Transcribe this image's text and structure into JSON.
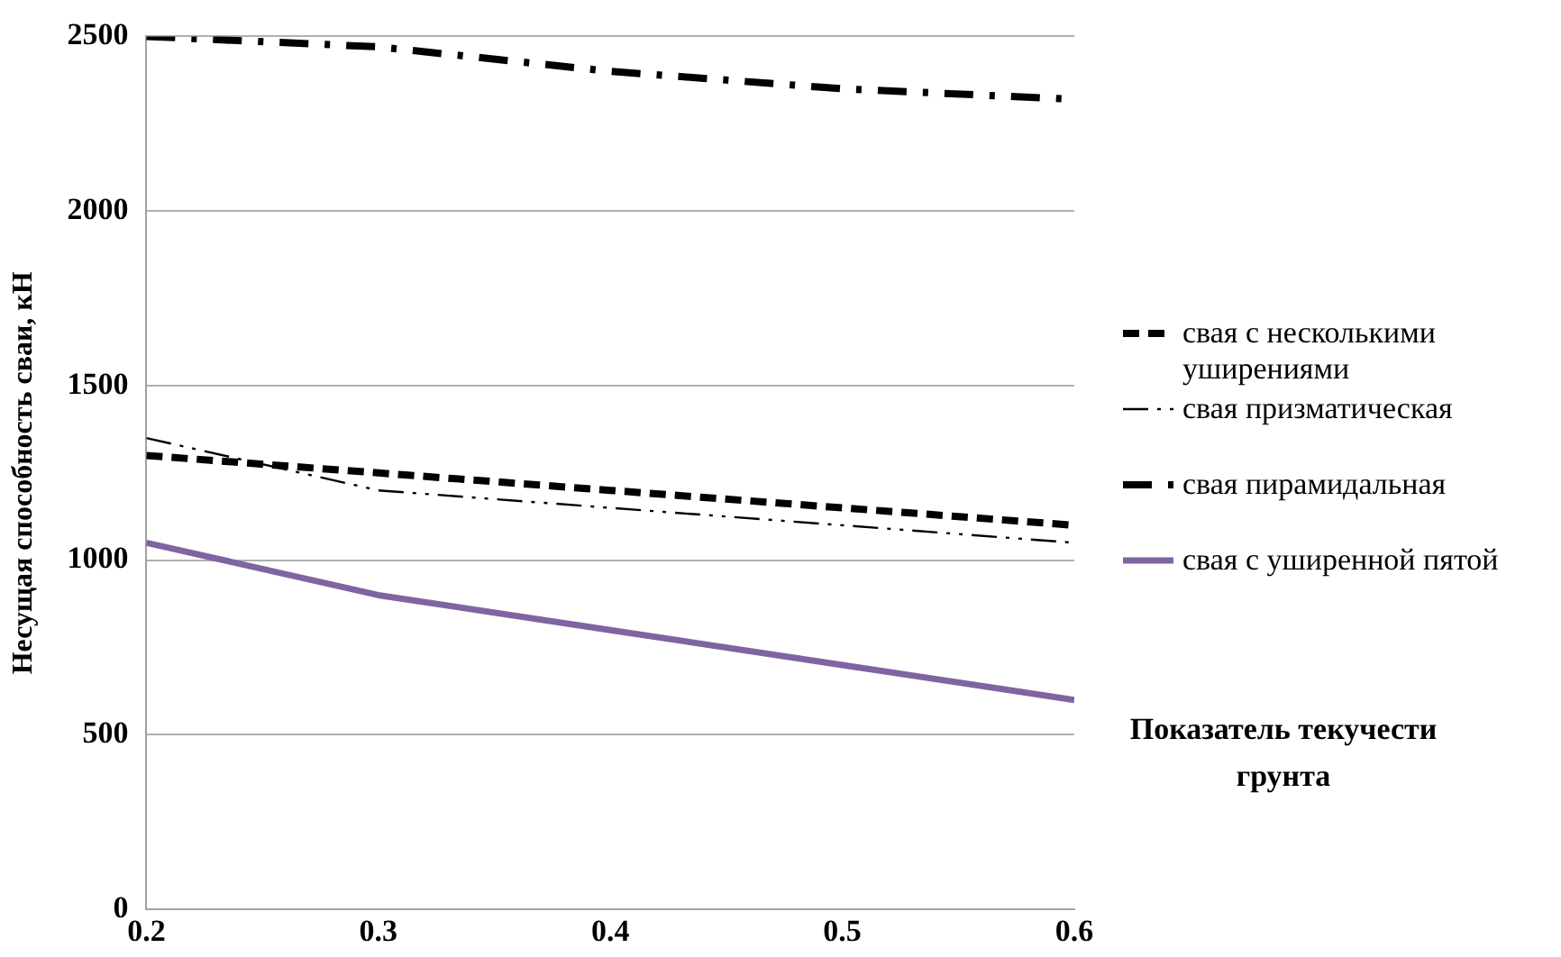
{
  "chart_data": {
    "type": "line",
    "xlabel": "Показатель текучести грунта",
    "ylabel": "Несущая способность сваи, кН",
    "x": [
      0.2,
      0.3,
      0.4,
      0.5,
      0.6
    ],
    "series": [
      {
        "name": "свая с несколькими уширениями",
        "color": "#000000",
        "line_style": "dashed",
        "values": [
          1300,
          1250,
          1200,
          1150,
          1100
        ]
      },
      {
        "name": "свая призматическая",
        "color": "#000000",
        "line_style": "dashdotdot",
        "values": [
          1350,
          1200,
          1150,
          1100,
          1050
        ]
      },
      {
        "name": "свая пирамидальная",
        "color": "#000000",
        "line_style": "dashdot",
        "values": [
          2500,
          2470,
          2400,
          2350,
          2320
        ]
      },
      {
        "name": "свая с уширенной пятой",
        "color": "#8064a2",
        "line_style": "solid",
        "values": [
          1050,
          900,
          800,
          700,
          600
        ]
      }
    ],
    "xlim": [
      0.2,
      0.6
    ],
    "xticks": [
      0.2,
      0.3,
      0.4,
      0.5,
      0.6
    ],
    "ylim": [
      0,
      2500
    ],
    "yticks": [
      0,
      500,
      1000,
      1500,
      2000,
      2500
    ],
    "grid": "y",
    "legend": "right",
    "marker": "none"
  }
}
